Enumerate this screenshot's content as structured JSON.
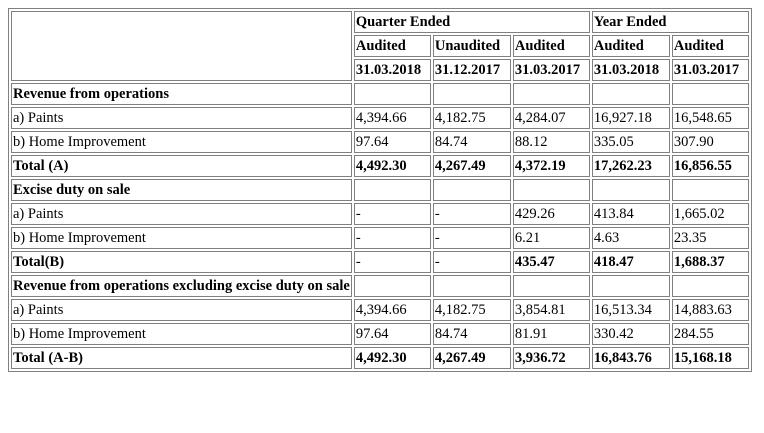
{
  "header": {
    "quarter_ended": "Quarter Ended",
    "year_ended": "Year Ended",
    "status": [
      "Audited",
      "Unaudited",
      "Audited",
      "Audited",
      "Audited"
    ],
    "dates": [
      "31.03.2018",
      "31.12.2017",
      "31.03.2017",
      "31.03.2018",
      "31.03.2017"
    ]
  },
  "rows": [
    {
      "label": "Revenue from operations",
      "values": [
        "",
        "",
        "",
        "",
        ""
      ]
    },
    {
      "label": "a) Paints",
      "values": [
        "4,394.66",
        "4,182.75",
        "4,284.07",
        "16,927.18",
        "16,548.65"
      ]
    },
    {
      "label": "b) Home Improvement",
      "values": [
        "97.64",
        "84.74",
        "88.12",
        "335.05",
        "307.90"
      ]
    },
    {
      "label": "Total (A)",
      "values": [
        "4,492.30",
        "4,267.49",
        "4,372.19",
        "17,262.23",
        "16,856.55"
      ]
    },
    {
      "label": "Excise duty on sale",
      "values": [
        "",
        "",
        "",
        "",
        ""
      ]
    },
    {
      "label": "a) Paints",
      "values": [
        "-",
        "-",
        "429.26",
        "413.84",
        "1,665.02"
      ]
    },
    {
      "label": "b) Home Improvement",
      "values": [
        "-",
        "-",
        "6.21",
        "4.63",
        "23.35"
      ]
    },
    {
      "label": "Total(B)",
      "values": [
        "-",
        "-",
        "435.47",
        "418.47",
        "1,688.37"
      ]
    },
    {
      "label": "Revenue from operations excluding excise duty on sale",
      "values": [
        "",
        "",
        "",
        "",
        ""
      ]
    },
    {
      "label": "a) Paints",
      "values": [
        "4,394.66",
        "4,182.75",
        "3,854.81",
        "16,513.34",
        "14,883.63"
      ]
    },
    {
      "label": "b) Home Improvement",
      "values": [
        "97.64",
        "84.74",
        "81.91",
        "330.42",
        "284.55"
      ]
    },
    {
      "label": "Total (A-B)",
      "values": [
        "4,492.30",
        "4,267.49",
        "3,936.72",
        "16,843.76",
        "15,168.18"
      ]
    }
  ]
}
